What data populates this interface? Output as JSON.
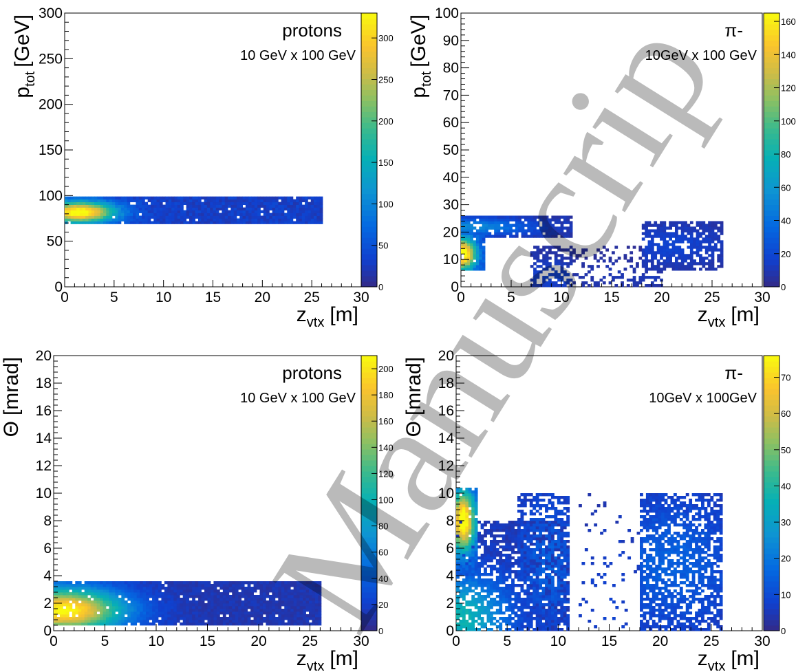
{
  "chart_data": [
    {
      "type": "heatmap",
      "label": "protons",
      "sublabel": "10 GeV x 100 GeV",
      "xlabel": "z",
      "xlabel_sub": "vtx",
      "xlabel_unit": "[m]",
      "ylabel": "p",
      "ylabel_sub": "tot",
      "ylabel_unit": "[GeV]",
      "xlim": [
        0,
        30
      ],
      "ylim": [
        0,
        300
      ],
      "xticks": [
        "0",
        "5",
        "10",
        "15",
        "20",
        "25",
        "30"
      ],
      "yticks": [
        "0",
        "50",
        "100",
        "150",
        "200",
        "250",
        "300"
      ],
      "zmax": 330,
      "zticks": [
        "0",
        "50",
        "100",
        "150",
        "200",
        "250",
        "300"
      ],
      "clusters": [
        {
          "x0": 0,
          "x1": 26,
          "y0": 70,
          "y1": 100,
          "peak": 320,
          "cx": 1.5,
          "cy": 82,
          "sx": 2.5,
          "sy": 8,
          "floor": 30,
          "density": 0.97
        }
      ]
    },
    {
      "type": "heatmap",
      "label": "π-",
      "sublabel": "10GeV x 100 GeV",
      "xlabel": "z",
      "xlabel_sub": "vtx",
      "xlabel_unit": "[m]",
      "ylabel": "p",
      "ylabel_sub": "tot",
      "ylabel_unit": "[GeV]",
      "xlim": [
        0,
        30
      ],
      "ylim": [
        0,
        100
      ],
      "xticks": [
        "0",
        "5",
        "10",
        "15",
        "20",
        "25",
        "30"
      ],
      "yticks": [
        "0",
        "10",
        "20",
        "30",
        "40",
        "50",
        "60",
        "70",
        "80",
        "90",
        "100"
      ],
      "zmax": 165,
      "zticks": [
        "0",
        "20",
        "40",
        "60",
        "80",
        "100",
        "120",
        "140",
        "160"
      ],
      "clusters": [
        {
          "x0": 0,
          "x1": 2.5,
          "y0": 6,
          "y1": 20,
          "peak": 160,
          "cx": 0.2,
          "cy": 12,
          "sx": 0.9,
          "sy": 4,
          "floor": 20,
          "density": 0.95
        },
        {
          "x0": 0,
          "x1": 11,
          "y0": 18,
          "y1": 26,
          "peak": 45,
          "cx": 1,
          "cy": 22,
          "sx": 4,
          "sy": 2,
          "floor": 8,
          "density": 0.85
        },
        {
          "x0": 7,
          "x1": 11,
          "y0": 0,
          "y1": 15,
          "peak": 12,
          "cx": 9,
          "cy": 4,
          "sx": 2,
          "sy": 4,
          "floor": 6,
          "density": 0.55
        },
        {
          "x0": 11,
          "x1": 18,
          "y0": 0,
          "y1": 15,
          "peak": 6,
          "cx": 15,
          "cy": 4,
          "sx": 3,
          "sy": 4,
          "floor": 4,
          "density": 0.22
        },
        {
          "x0": 18,
          "x1": 26,
          "y0": 6,
          "y1": 24,
          "peak": 12,
          "cx": 21,
          "cy": 15,
          "sx": 4,
          "sy": 5,
          "floor": 6,
          "density": 0.75
        },
        {
          "x0": 17,
          "x1": 20,
          "y0": 0,
          "y1": 6,
          "peak": 8,
          "cx": 18.5,
          "cy": 3,
          "sx": 2,
          "sy": 2,
          "floor": 4,
          "density": 0.4
        }
      ]
    },
    {
      "type": "heatmap",
      "label": "protons",
      "sublabel": "10 GeV x 100 GeV",
      "xlabel": "z",
      "xlabel_sub": "vtx",
      "xlabel_unit": "[m]",
      "ylabel": "Θ",
      "ylabel_sub": "",
      "ylabel_unit": "[mrad]",
      "xlim": [
        0,
        30
      ],
      "ylim": [
        0,
        20
      ],
      "xticks": [
        "0",
        "5",
        "10",
        "15",
        "20",
        "25",
        "30"
      ],
      "yticks": [
        "0",
        "2",
        "4",
        "6",
        "8",
        "10",
        "12",
        "14",
        "16",
        "18",
        "20"
      ],
      "zmax": 210,
      "zticks": [
        "0",
        "20",
        "40",
        "60",
        "80",
        "100",
        "120",
        "140",
        "160",
        "180",
        "200"
      ],
      "clusters": [
        {
          "x0": 0,
          "x1": 26,
          "y0": 0.4,
          "y1": 3.6,
          "peak": 200,
          "cx": 1,
          "cy": 1.5,
          "sx": 4,
          "sy": 1.1,
          "floor": 12,
          "density": 0.95
        }
      ]
    },
    {
      "type": "heatmap",
      "label": "π-",
      "sublabel": "10GeV x 100GeV",
      "xlabel": "z",
      "xlabel_sub": "vtx",
      "xlabel_unit": "[m]",
      "ylabel": "Θ",
      "ylabel_sub": "",
      "ylabel_unit": "[mrad]",
      "xlim": [
        0,
        30
      ],
      "ylim": [
        0,
        20
      ],
      "xticks": [
        "0",
        "5",
        "10",
        "15",
        "20",
        "25",
        "30"
      ],
      "yticks": [
        "0",
        "2",
        "4",
        "6",
        "8",
        "10",
        "12",
        "14",
        "16",
        "18",
        "20"
      ],
      "zmax": 76,
      "zticks": [
        "0",
        "10",
        "20",
        "30",
        "40",
        "50",
        "60",
        "70"
      ],
      "clusters": [
        {
          "x0": 0,
          "x1": 2.2,
          "y0": 4,
          "y1": 10.3,
          "peak": 72,
          "cx": 0.7,
          "cy": 8,
          "sx": 0.8,
          "sy": 1.5,
          "floor": 10,
          "density": 0.95
        },
        {
          "x0": 0,
          "x1": 11,
          "y0": 0,
          "y1": 8,
          "peak": 32,
          "cx": 0.5,
          "cy": 1,
          "sx": 3,
          "sy": 2,
          "floor": 5,
          "density": 0.72
        },
        {
          "x0": 6,
          "x1": 11,
          "y0": 0,
          "y1": 10,
          "peak": 10,
          "cx": 9,
          "cy": 5,
          "sx": 2,
          "sy": 3,
          "floor": 5,
          "density": 0.6
        },
        {
          "x0": 12,
          "x1": 18,
          "y0": 0,
          "y1": 10,
          "peak": 5,
          "cx": 15,
          "cy": 3,
          "sx": 3,
          "sy": 4,
          "floor": 3,
          "density": 0.06
        },
        {
          "x0": 18,
          "x1": 26,
          "y0": 0,
          "y1": 10,
          "peak": 10,
          "cx": 21,
          "cy": 5,
          "sx": 4,
          "sy": 3,
          "floor": 5,
          "density": 0.7
        }
      ]
    }
  ],
  "watermark": "Manuscrip"
}
